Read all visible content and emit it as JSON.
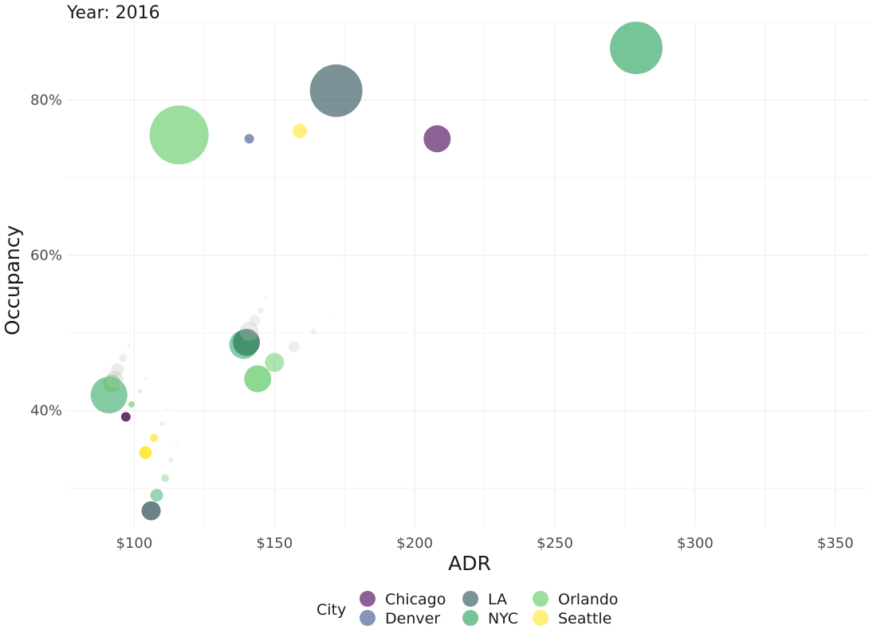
{
  "chart_data": {
    "type": "scatter",
    "title": "Year: 2016",
    "xlabel": "ADR",
    "ylabel": "Occupancy",
    "xlim": [
      76,
      362
    ],
    "ylim": [
      25,
      90
    ],
    "x_ticks": [
      100,
      150,
      200,
      250,
      300,
      350
    ],
    "x_tick_labels": [
      "$100",
      "$150",
      "$200",
      "$250",
      "$300",
      "$350"
    ],
    "y_ticks": [
      40,
      60,
      80
    ],
    "y_tick_labels": [
      "40%",
      "60%",
      "80%"
    ],
    "legend": {
      "title": "City",
      "position": "bottom"
    },
    "series": [
      {
        "name": "Chicago",
        "color": "#440154",
        "points": [
          {
            "x": 208,
            "y": 75.0,
            "size": 17
          }
        ]
      },
      {
        "name": "Denver",
        "color": "#3b528b",
        "points": [
          {
            "x": 141,
            "y": 75.0,
            "size": 6
          }
        ]
      },
      {
        "name": "LA",
        "color": "#2c4f55",
        "points": [
          {
            "x": 172,
            "y": 81.2,
            "size": 33
          }
        ]
      },
      {
        "name": "NYC",
        "color": "#21a15a",
        "points": [
          {
            "x": 279,
            "y": 86.7,
            "size": 33
          }
        ]
      },
      {
        "name": "Orlando",
        "color": "#5ec962",
        "points": [
          {
            "x": 116,
            "y": 75.5,
            "size": 37
          }
        ]
      },
      {
        "name": "Seattle",
        "color": "#fde725",
        "points": [
          {
            "x": 159,
            "y": 76.0,
            "size": 9
          }
        ]
      }
    ],
    "trail_points": [
      {
        "city": "Chicago",
        "x": 97,
        "y": 39.2,
        "size": 6,
        "opacity": 0.8
      },
      {
        "city": "LA",
        "x": 106,
        "y": 27.1,
        "size": 12,
        "opacity": 0.7
      },
      {
        "city": "LA",
        "x": 140,
        "y": 48.8,
        "size": 17,
        "opacity": 0.7
      },
      {
        "city": "NYC",
        "x": 91,
        "y": 42.0,
        "size": 23,
        "opacity": 0.55
      },
      {
        "city": "NYC",
        "x": 139,
        "y": 48.5,
        "size": 18,
        "opacity": 0.55
      },
      {
        "city": "NYC",
        "x": 108,
        "y": 29.1,
        "size": 8,
        "opacity": 0.45
      },
      {
        "city": "Orlando",
        "x": 144,
        "y": 44.1,
        "size": 17,
        "opacity": 0.7
      },
      {
        "city": "Orlando",
        "x": 150,
        "y": 46.2,
        "size": 12,
        "opacity": 0.5
      },
      {
        "city": "Orlando",
        "x": 92,
        "y": 43.5,
        "size": 11,
        "opacity": 0.6
      },
      {
        "city": "Orlando",
        "x": 99,
        "y": 40.8,
        "size": 4,
        "opacity": 0.6
      },
      {
        "city": "Orlando",
        "x": 111,
        "y": 31.3,
        "size": 5,
        "opacity": 0.35
      },
      {
        "city": "Seattle",
        "x": 104,
        "y": 34.6,
        "size": 8,
        "opacity": 0.85
      },
      {
        "city": "Seattle",
        "x": 107,
        "y": 36.5,
        "size": 5,
        "opacity": 0.7
      },
      {
        "city": "Gray",
        "x": 93,
        "y": 44.0,
        "size": 11,
        "opacity": 0.35
      },
      {
        "city": "Gray",
        "x": 94,
        "y": 45.3,
        "size": 8,
        "opacity": 0.3
      },
      {
        "city": "Gray",
        "x": 96,
        "y": 46.8,
        "size": 5,
        "opacity": 0.25
      },
      {
        "city": "Gray",
        "x": 98,
        "y": 48.4,
        "size": 2,
        "opacity": 0.2
      },
      {
        "city": "Gray",
        "x": 141,
        "y": 50.2,
        "size": 12,
        "opacity": 0.3
      },
      {
        "city": "Gray",
        "x": 143,
        "y": 51.6,
        "size": 7,
        "opacity": 0.25
      },
      {
        "city": "Gray",
        "x": 145,
        "y": 52.9,
        "size": 4,
        "opacity": 0.2
      },
      {
        "city": "Gray",
        "x": 147,
        "y": 54.6,
        "size": 2,
        "opacity": 0.15
      },
      {
        "city": "Gray",
        "x": 157,
        "y": 48.2,
        "size": 7,
        "opacity": 0.25
      },
      {
        "city": "Gray",
        "x": 164,
        "y": 50.2,
        "size": 4,
        "opacity": 0.2
      },
      {
        "city": "Gray",
        "x": 170,
        "y": 52.3,
        "size": 1.5,
        "opacity": 0.15
      },
      {
        "city": "Gray",
        "x": 102,
        "y": 42.5,
        "size": 3,
        "opacity": 0.3
      },
      {
        "city": "Gray",
        "x": 104,
        "y": 44.1,
        "size": 2,
        "opacity": 0.2
      },
      {
        "city": "Gray",
        "x": 110,
        "y": 38.3,
        "size": 3,
        "opacity": 0.25
      },
      {
        "city": "Gray",
        "x": 112,
        "y": 40.2,
        "size": 1.5,
        "opacity": 0.2
      },
      {
        "city": "Gray",
        "x": 113,
        "y": 33.6,
        "size": 3,
        "opacity": 0.25
      },
      {
        "city": "Gray",
        "x": 115,
        "y": 35.6,
        "size": 1.5,
        "opacity": 0.2
      }
    ]
  }
}
